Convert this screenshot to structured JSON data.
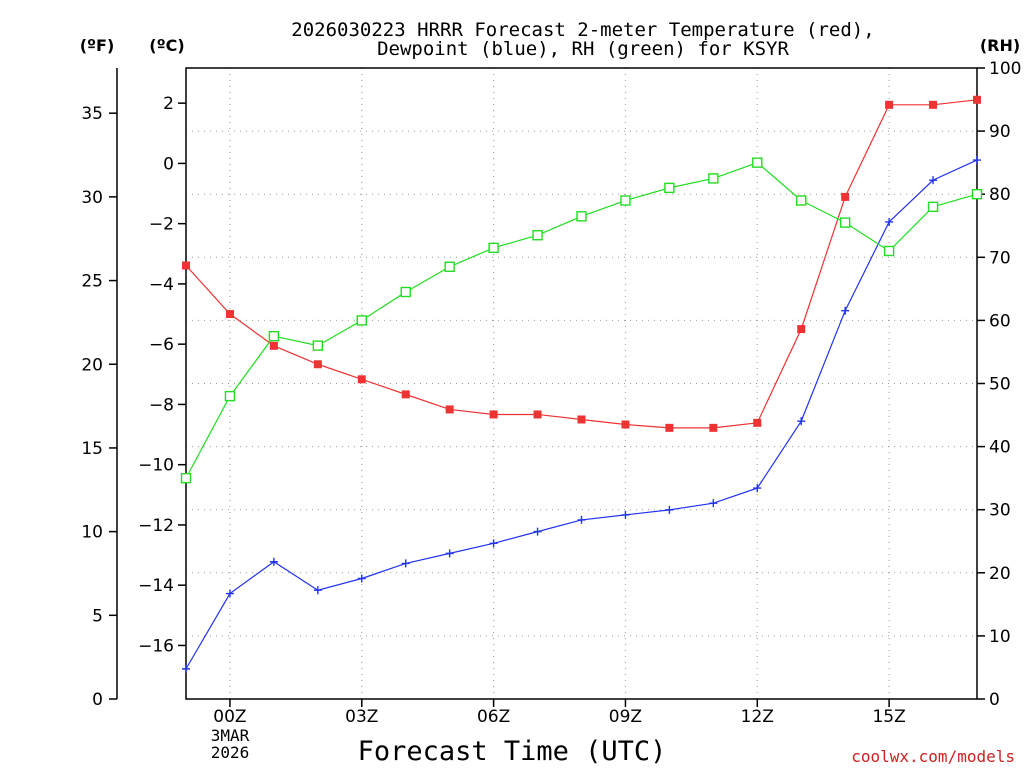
{
  "chart_data": {
    "type": "line",
    "title_line1": "2026030223 HRRR Forecast 2-meter Temperature (red),",
    "title_line2": "Dewpoint (blue), RH (green) for KSYR",
    "xlabel": "Forecast Time (UTC)",
    "credit": "coolwx.com/models",
    "x_first_label_extra": [
      "3MAR",
      "2026"
    ],
    "x": [
      -1,
      0,
      1,
      2,
      3,
      4,
      5,
      6,
      7,
      8,
      9,
      10,
      11,
      12,
      13,
      14,
      15,
      16,
      17
    ],
    "xlim": [
      -1,
      17
    ],
    "x_ticks": [
      {
        "value": 0,
        "label": "00Z"
      },
      {
        "value": 3,
        "label": "03Z"
      },
      {
        "value": 6,
        "label": "06Z"
      },
      {
        "value": 9,
        "label": "09Z"
      },
      {
        "value": 12,
        "label": "12Z"
      },
      {
        "value": 15,
        "label": "15Z"
      }
    ],
    "axes": {
      "fahrenheit": {
        "unit_label": "(ºF)",
        "lim": [
          0,
          37.7
        ],
        "ticks": [
          0,
          5,
          10,
          15,
          20,
          25,
          30,
          35
        ]
      },
      "celsius": {
        "unit_label": "(ºC)",
        "lim": [
          -17.78,
          3.17
        ],
        "ticks": [
          -16,
          -14,
          -12,
          -10,
          -8,
          -6,
          -4,
          -2,
          0,
          2
        ]
      },
      "rh": {
        "unit_label": "(RH)",
        "lim": [
          0,
          100
        ],
        "ticks": [
          0,
          10,
          20,
          30,
          40,
          50,
          60,
          70,
          80,
          90,
          100
        ]
      }
    },
    "series": [
      {
        "name": "Temperature",
        "unit": "F",
        "color": "#ee3333",
        "marker": "filled-square",
        "values": [
          25.9,
          23.0,
          21.1,
          20.0,
          19.1,
          18.2,
          17.3,
          17.0,
          17.0,
          16.7,
          16.4,
          16.2,
          16.2,
          16.5,
          22.1,
          30.0,
          35.5,
          35.5,
          35.8
        ]
      },
      {
        "name": "Dewpoint",
        "unit": "F",
        "color": "#2233ee",
        "marker": "plus",
        "values": [
          1.8,
          6.3,
          8.2,
          6.5,
          7.2,
          8.1,
          8.7,
          9.3,
          10.0,
          10.7,
          11.0,
          11.3,
          11.7,
          12.6,
          16.6,
          23.2,
          28.5,
          31.0,
          32.2
        ]
      },
      {
        "name": "RH",
        "unit": "%",
        "color": "#22dd22",
        "marker": "open-square",
        "values": [
          35,
          48,
          57.5,
          56,
          60,
          64.5,
          68.5,
          71.5,
          73.5,
          76.5,
          79,
          81,
          82.5,
          85,
          79,
          75.5,
          71,
          78,
          80
        ]
      }
    ]
  }
}
